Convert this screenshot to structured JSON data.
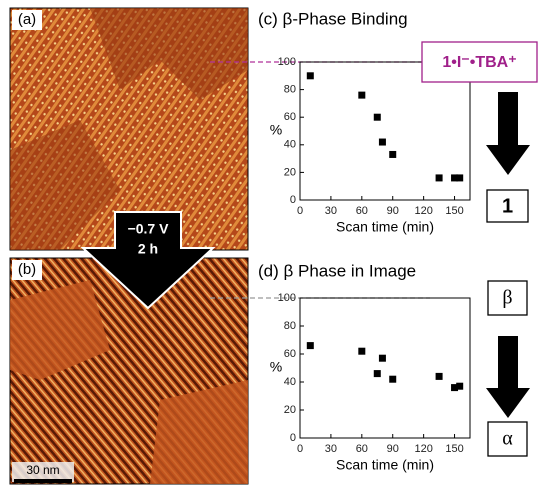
{
  "images": {
    "a_label": "(a)",
    "b_label": "(b)",
    "arrow_text": [
      "−0.7 V",
      "2 h"
    ],
    "scale_bar": "30 nm"
  },
  "chart_data": [
    {
      "type": "scatter",
      "title": "(c) β-Phase Binding",
      "x_label": "Scan time (min)",
      "y_label": "%",
      "x": [
        10,
        60,
        75,
        80,
        90,
        135,
        150,
        155
      ],
      "values": [
        90,
        76,
        60,
        42,
        33,
        16,
        16,
        16
      ],
      "color": "#000000",
      "xlim": [
        0,
        165
      ],
      "xticks": [
        0,
        30,
        60,
        90,
        120,
        150
      ],
      "ylim": [
        0,
        100
      ],
      "yticks": [
        0,
        20,
        40,
        60,
        80,
        100
      ],
      "reference_line": 100,
      "reference_color": "#b0309a",
      "annotations": [
        {
          "text": "1•I⁻•TBA⁺",
          "color": "#a0208a"
        },
        {
          "text": "1",
          "color": "#000000"
        }
      ]
    },
    {
      "type": "scatter",
      "title": "(d) β Phase in Image",
      "x_label": "Scan time (min)",
      "y_label": "%",
      "x": [
        10,
        60,
        75,
        80,
        90,
        135,
        150,
        155
      ],
      "values": [
        66,
        62,
        46,
        57,
        42,
        44,
        36,
        37
      ],
      "color": "#000000",
      "xlim": [
        0,
        165
      ],
      "xticks": [
        0,
        30,
        60,
        90,
        120,
        150
      ],
      "ylim": [
        0,
        100
      ],
      "yticks": [
        0,
        20,
        40,
        60,
        80,
        100
      ],
      "reference_line": 100,
      "reference_color": "#999999",
      "annotations": [
        {
          "text": "β",
          "color": "#000000"
        },
        {
          "text": "α",
          "color": "#000000"
        }
      ]
    }
  ]
}
